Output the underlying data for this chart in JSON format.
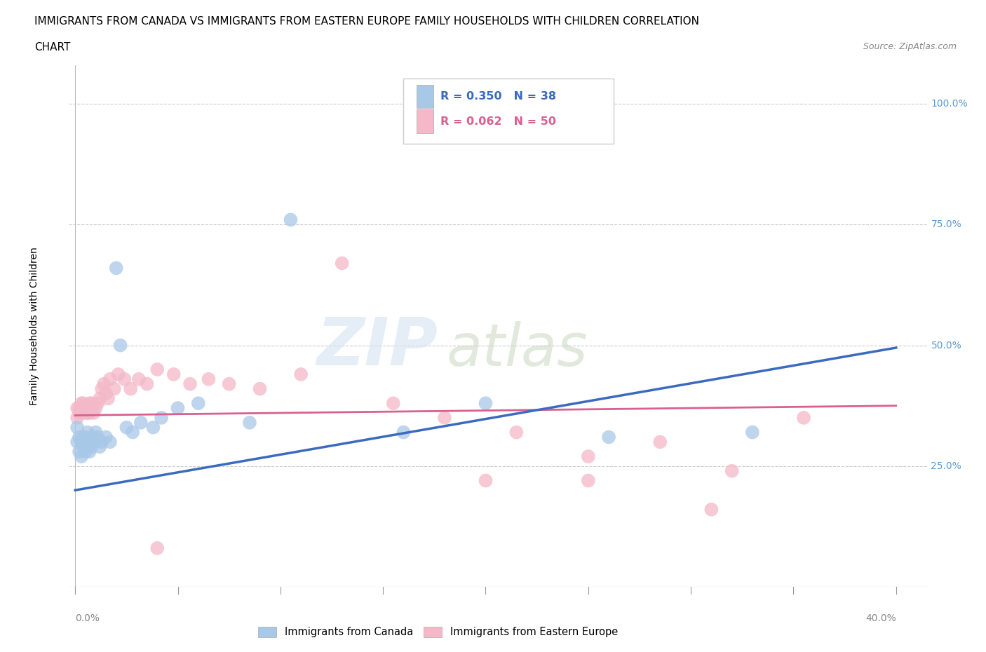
{
  "title_line1": "IMMIGRANTS FROM CANADA VS IMMIGRANTS FROM EASTERN EUROPE FAMILY HOUSEHOLDS WITH CHILDREN CORRELATION",
  "title_line2": "CHART",
  "source": "Source: ZipAtlas.com",
  "ylabel": "Family Households with Children",
  "legend_canada": "R = 0.350   N = 38",
  "legend_eastern": "R = 0.062   N = 50",
  "legend_label_canada": "Immigrants from Canada",
  "legend_label_eastern": "Immigrants from Eastern Europe",
  "canada_color": "#a8c8e8",
  "eastern_color": "#f4b8c8",
  "canada_line_color": "#3b6abf",
  "eastern_line_color": "#d96090",
  "canada_scatter_x": [
    0.001,
    0.001,
    0.002,
    0.002,
    0.003,
    0.003,
    0.004,
    0.004,
    0.005,
    0.005,
    0.006,
    0.006,
    0.007,
    0.007,
    0.008,
    0.009,
    0.01,
    0.01,
    0.011,
    0.012,
    0.013,
    0.015,
    0.017,
    0.02,
    0.022,
    0.025,
    0.028,
    0.032,
    0.038,
    0.042,
    0.05,
    0.06,
    0.085,
    0.105,
    0.16,
    0.2,
    0.26,
    0.33
  ],
  "canada_scatter_y": [
    0.33,
    0.3,
    0.31,
    0.28,
    0.3,
    0.27,
    0.29,
    0.31,
    0.28,
    0.31,
    0.29,
    0.32,
    0.3,
    0.28,
    0.29,
    0.31,
    0.3,
    0.32,
    0.31,
    0.29,
    0.3,
    0.31,
    0.3,
    0.66,
    0.5,
    0.33,
    0.32,
    0.34,
    0.33,
    0.35,
    0.37,
    0.38,
    0.34,
    0.76,
    0.32,
    0.38,
    0.31,
    0.32
  ],
  "eastern_scatter_x": [
    0.001,
    0.001,
    0.002,
    0.002,
    0.003,
    0.003,
    0.004,
    0.004,
    0.005,
    0.005,
    0.006,
    0.006,
    0.007,
    0.007,
    0.008,
    0.008,
    0.009,
    0.01,
    0.011,
    0.012,
    0.013,
    0.014,
    0.015,
    0.016,
    0.017,
    0.019,
    0.021,
    0.024,
    0.027,
    0.031,
    0.035,
    0.04,
    0.048,
    0.056,
    0.065,
    0.075,
    0.09,
    0.11,
    0.13,
    0.155,
    0.18,
    0.215,
    0.25,
    0.285,
    0.32,
    0.355,
    0.04,
    0.2,
    0.25,
    0.31
  ],
  "eastern_scatter_y": [
    0.37,
    0.35,
    0.37,
    0.36,
    0.38,
    0.36,
    0.37,
    0.38,
    0.36,
    0.37,
    0.36,
    0.37,
    0.38,
    0.36,
    0.37,
    0.38,
    0.36,
    0.37,
    0.38,
    0.39,
    0.41,
    0.42,
    0.4,
    0.39,
    0.43,
    0.41,
    0.44,
    0.43,
    0.41,
    0.43,
    0.42,
    0.45,
    0.44,
    0.42,
    0.43,
    0.42,
    0.41,
    0.44,
    0.67,
    0.38,
    0.35,
    0.32,
    0.27,
    0.3,
    0.24,
    0.35,
    0.08,
    0.22,
    0.22,
    0.16
  ],
  "watermark_zip": "ZIP",
  "watermark_atlas": "atlas",
  "background_color": "#ffffff",
  "grid_color": "#cccccc",
  "title_fontsize": 11,
  "axis_label_fontsize": 10,
  "tick_fontsize": 10,
  "xlim_min": -0.003,
  "xlim_max": 0.415,
  "ylim_min": 0.0,
  "ylim_max": 1.08,
  "canada_line_x0": 0.0,
  "canada_line_y0": 0.2,
  "canada_line_x1": 0.4,
  "canada_line_y1": 0.495,
  "eastern_line_x0": 0.0,
  "eastern_line_y0": 0.355,
  "eastern_line_x1": 0.4,
  "eastern_line_y1": 0.375
}
